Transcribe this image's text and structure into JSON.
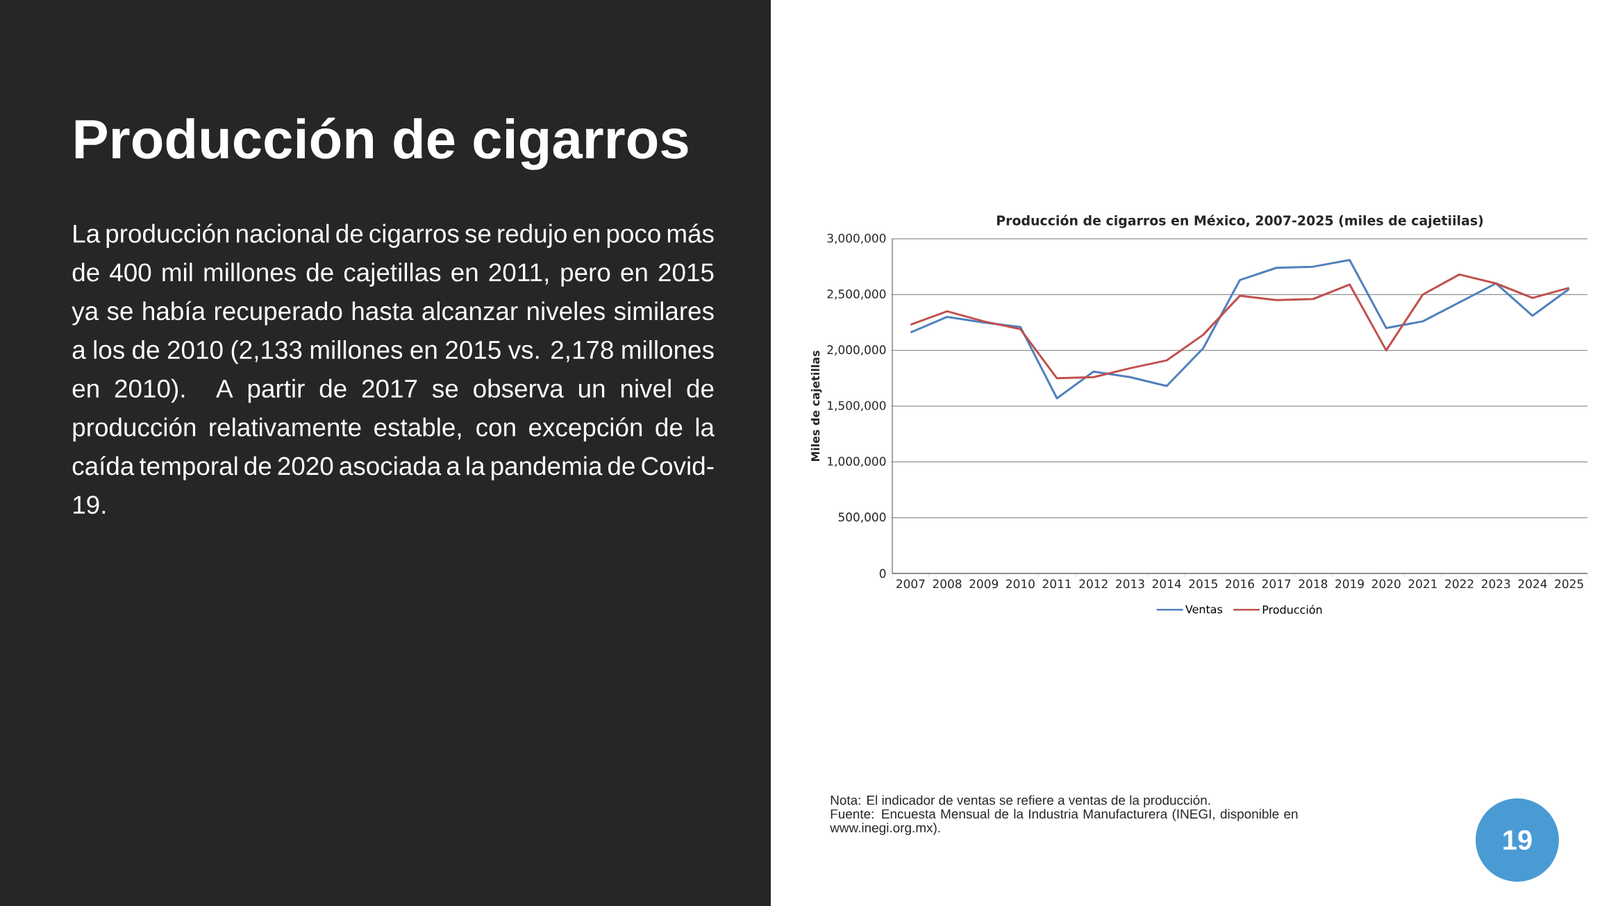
{
  "chart_data": {
    "type": "line",
    "title": "Producción de cigarros en México, 2007-2025 (miles de cajetiilas)",
    "ylabel": "Miles de cajetillas",
    "categories": [
      "2007",
      "2008",
      "2009",
      "2010",
      "2011",
      "2012",
      "2013",
      "2014",
      "2015",
      "2016",
      "2017",
      "2018",
      "2019",
      "2020",
      "2021",
      "2022",
      "2023",
      "2024",
      "2025"
    ],
    "series": [
      {
        "name": "Ventas",
        "color": "#4f81bd",
        "values": [
          2160000,
          2300000,
          2250000,
          2210000,
          1570000,
          1810000,
          1760000,
          1680000,
          2020000,
          2630000,
          2740000,
          2750000,
          2810000,
          2200000,
          2260000,
          2430000,
          2600000,
          2310000,
          2550000
        ]
      },
      {
        "name": "Producción",
        "color": "#c0504d",
        "values": [
          2230000,
          2350000,
          2260000,
          2190000,
          1750000,
          1760000,
          1840000,
          1910000,
          2140000,
          2490000,
          2450000,
          2460000,
          2590000,
          2000000,
          2500000,
          2680000,
          2600000,
          2470000,
          2560000
        ]
      }
    ],
    "ylim": [
      0,
      3000000
    ],
    "yticks": [
      {
        "value": 0,
        "label": "0"
      },
      {
        "value": 500000,
        "label": "500,000"
      },
      {
        "value": 1000000,
        "label": "1,000,000"
      },
      {
        "value": 1500000,
        "label": "1,500,000"
      },
      {
        "value": 2000000,
        "label": "2,000,000"
      },
      {
        "value": 2500000,
        "label": "2,500,000"
      },
      {
        "value": 3000000,
        "label": "3,000,000"
      }
    ],
    "grid": "y",
    "legend": "bottom",
    "marker": "none",
    "line_style": "solid",
    "annotations": [
      "Producción de cigarros",
      "La producción nacional de cigarros se redujo en poco más de 400 mil millones de cajetillas en 2011, pero en 2015 ya se había recuperado hasta alcanzar niveles similares a los de 2010 (2,133 millones en 2015 vs. 2,178 millones en 2010). A partir de 2017 se observa un nivel de producción relativamente estable, con excepción de la caída temporal de 2020 asociada a la pandemia de Covid-19.",
      "Nota: El indicador de ventas se refiere a ventas de la producción.",
      "Fuente: Encuesta Mensual de la Industria Manufacturera (INEGI, disponible en www.inegi.org.mx).",
      "19"
    ]
  }
}
